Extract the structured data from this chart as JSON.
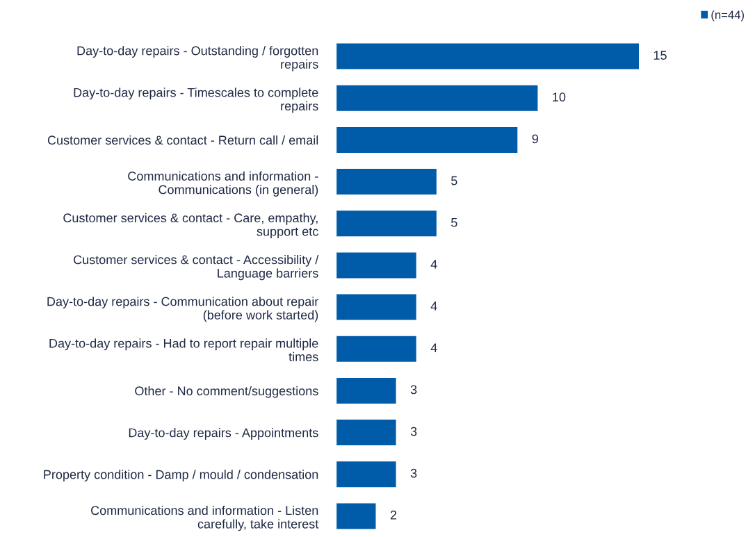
{
  "chart_data": {
    "type": "bar",
    "orientation": "horizontal",
    "categories": [
      "Day-to-day repairs - Outstanding / forgotten\nrepairs",
      "Day-to-day repairs - Timescales to complete\nrepairs",
      "Customer services & contact - Return call / email",
      "Communications and information -\nCommunications (in general)",
      "Customer services & contact - Care, empathy,\nsupport etc",
      "Customer services & contact - Accessibility /\nLanguage barriers",
      "Day-to-day repairs - Communication about repair\n(before work started)",
      "Day-to-day repairs - Had to report repair multiple\ntimes",
      "Other - No comment/suggestions",
      "Day-to-day repairs - Appointments",
      "Property condition - Damp / mould / condensation",
      "Communications and information - Listen\ncarefully, take interest"
    ],
    "series": [
      {
        "name": "(n=44)",
        "color": "#005ba8",
        "values": [
          15,
          10,
          9,
          5,
          5,
          4,
          4,
          4,
          3,
          3,
          3,
          2
        ]
      }
    ],
    "data_labels": true,
    "legend": "top right",
    "grid": false
  }
}
